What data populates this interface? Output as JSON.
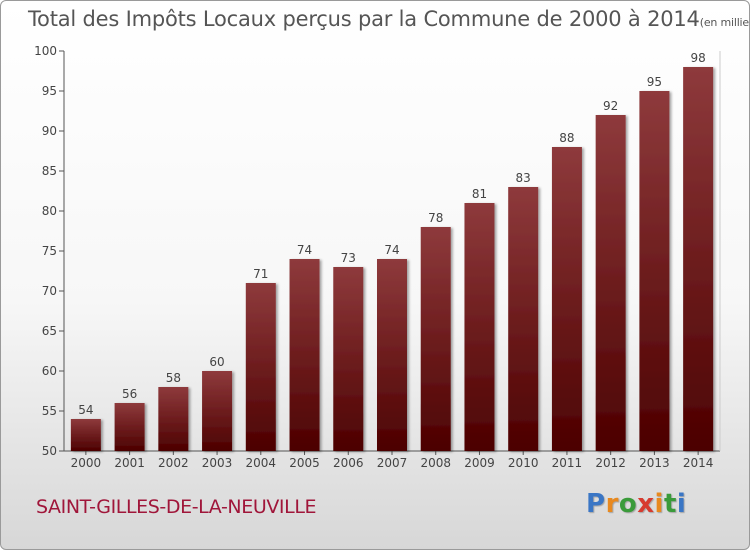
{
  "title": "Total des Impôts Locaux perçus par la Commune de 2000 à 2014",
  "unit_note": "(en milliers d'€)",
  "commune": "SAINT-GILLES-DE-LA-NEUVILLE",
  "logo": {
    "text": "Proxiti",
    "letters": [
      {
        "ch": "P",
        "color": "#3a76c5"
      },
      {
        "ch": "r",
        "color": "#e8891f"
      },
      {
        "ch": "o",
        "color": "#3a9b3a"
      },
      {
        "ch": "x",
        "color": "#d73b2f"
      },
      {
        "ch": "i",
        "color": "#e8891f"
      },
      {
        "ch": "t",
        "color": "#3a9b3a"
      },
      {
        "ch": "i",
        "color": "#3a76c5"
      }
    ]
  },
  "colors": {
    "bar_top": "#8e3a3c",
    "bar_bottom": "#4c0000",
    "commune": "#a0163a"
  },
  "chart_data": {
    "type": "bar",
    "categories": [
      "2000",
      "2001",
      "2002",
      "2003",
      "2004",
      "2005",
      "2006",
      "2007",
      "2008",
      "2009",
      "2010",
      "2011",
      "2012",
      "2013",
      "2014"
    ],
    "values": [
      54,
      56,
      58,
      60,
      71,
      74,
      73,
      74,
      78,
      81,
      83,
      88,
      92,
      95,
      98
    ],
    "ylim": [
      50,
      100
    ],
    "yticks": [
      50,
      55,
      60,
      65,
      70,
      75,
      80,
      85,
      90,
      95,
      100
    ],
    "xlabel": "",
    "ylabel": "",
    "data_labels": true,
    "grid": false
  }
}
